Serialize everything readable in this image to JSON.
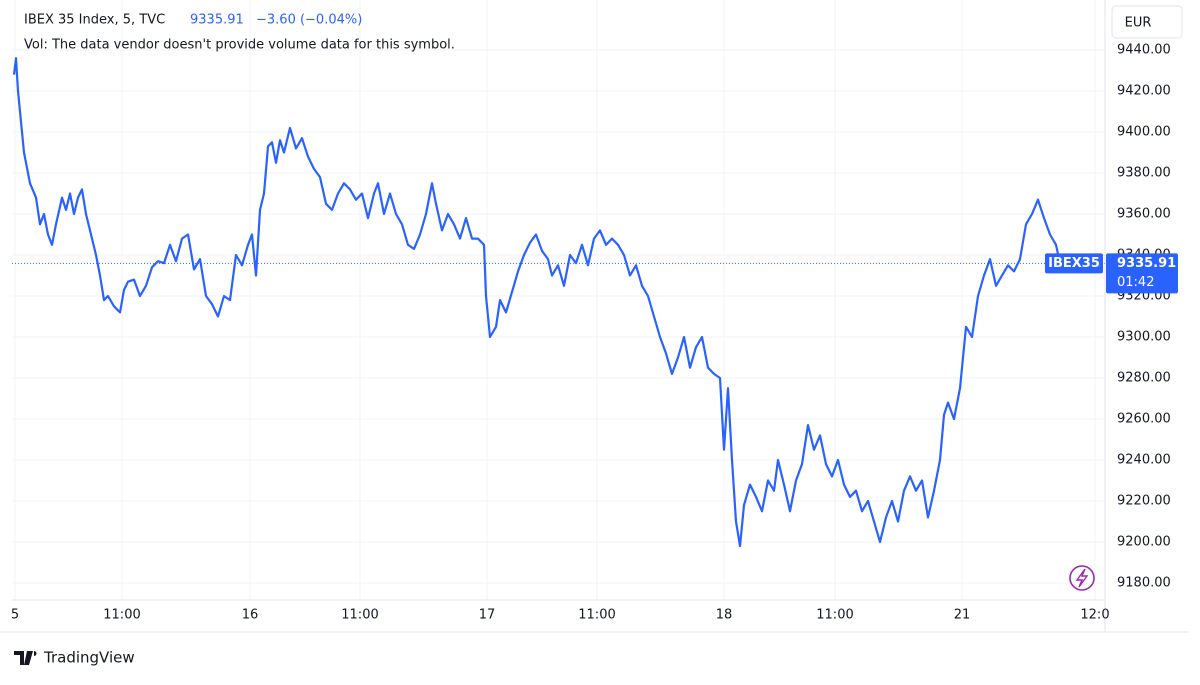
{
  "header": {
    "symbol": "IBEX 35 Index, 5, TVC",
    "change": "−3.60 (−0.04%)",
    "volume_note": "Vol: The data vendor doesn't provide volume data for this symbol."
  },
  "currency": "EUR",
  "brand": "TradingView",
  "chart_data": {
    "type": "line",
    "series": [
      {
        "name": "IBEX35",
        "color": "#2962ff",
        "x": [
          1,
          2,
          3,
          6,
          9,
          12,
          14,
          16,
          18,
          20,
          22,
          25,
          27,
          29,
          31,
          33,
          35,
          37,
          39,
          42,
          44,
          46,
          48,
          51,
          54,
          56,
          58,
          61,
          64,
          67,
          70,
          73,
          76,
          79,
          82,
          85,
          88,
          91,
          94,
          97,
          100,
          103,
          106,
          109,
          112,
          115,
          118,
          120,
          122,
          124,
          126,
          128,
          130,
          132,
          134,
          136,
          139,
          142,
          145,
          148,
          151,
          154,
          157,
          160,
          163,
          166,
          169,
          172,
          175,
          178,
          181,
          183,
          186,
          189,
          192,
          195,
          198,
          201,
          204,
          207,
          210,
          212,
          215,
          218,
          221,
          224,
          227,
          230,
          233,
          236,
          237,
          239,
          242,
          244,
          247,
          250,
          253,
          256,
          259,
          262,
          265,
          268,
          270,
          273,
          276,
          279,
          282,
          285,
          288,
          291,
          294,
          297,
          300,
          303,
          306,
          309,
          312,
          315,
          318,
          321,
          324,
          327,
          330,
          333,
          336,
          339,
          342,
          345,
          348,
          351,
          354,
          356,
          358,
          360,
          362,
          364,
          366,
          369,
          372,
          375,
          378,
          381,
          383,
          386,
          389,
          392,
          395,
          398,
          401,
          404,
          407,
          410,
          413,
          416,
          419,
          422,
          425,
          428,
          431,
          434,
          437,
          440,
          443,
          446,
          449,
          452,
          455,
          458,
          461,
          464,
          466,
          468,
          471,
          474,
          477,
          480,
          483,
          486,
          489,
          492,
          495,
          498,
          501,
          504,
          507,
          510,
          513,
          516,
          519,
          522,
          524
        ],
        "values": [
          9428,
          9436,
          9420,
          9390,
          9375,
          9368,
          9355,
          9360,
          9350,
          9345,
          9355,
          9368,
          9362,
          9370,
          9360,
          9368,
          9372,
          9360,
          9352,
          9340,
          9330,
          9318,
          9320,
          9315,
          9312,
          9323,
          9327,
          9328,
          9320,
          9325,
          9334,
          9337,
          9336,
          9345,
          9337,
          9348,
          9350,
          9333,
          9338,
          9320,
          9316,
          9310,
          9320,
          9318,
          9340,
          9335,
          9345,
          9350,
          9330,
          9362,
          9370,
          9393,
          9395,
          9385,
          9396,
          9390,
          9402,
          9392,
          9397,
          9388,
          9382,
          9378,
          9365,
          9362,
          9370,
          9375,
          9372,
          9367,
          9370,
          9358,
          9370,
          9375,
          9360,
          9370,
          9360,
          9355,
          9345,
          9343,
          9350,
          9360,
          9375,
          9365,
          9352,
          9360,
          9355,
          9348,
          9358,
          9348,
          9348,
          9345,
          9320,
          9300,
          9305,
          9318,
          9312,
          9322,
          9332,
          9340,
          9346,
          9350,
          9342,
          9338,
          9330,
          9335,
          9325,
          9340,
          9336,
          9345,
          9335,
          9348,
          9352,
          9345,
          9348,
          9345,
          9340,
          9330,
          9335,
          9325,
          9320,
          9310,
          9300,
          9292,
          9282,
          9290,
          9300,
          9285,
          9295,
          9300,
          9285,
          9282,
          9280,
          9245,
          9275,
          9240,
          9210,
          9198,
          9218,
          9228,
          9222,
          9215,
          9230,
          9225,
          9240,
          9228,
          9215,
          9230,
          9238,
          9257,
          9245,
          9252,
          9238,
          9232,
          9240,
          9228,
          9222,
          9225,
          9215,
          9220,
          9210,
          9200,
          9212,
          9220,
          9210,
          9225,
          9232,
          9225,
          9230,
          9212,
          9225,
          9240,
          9262,
          9268,
          9260,
          9275,
          9305,
          9300,
          9320,
          9330,
          9338,
          9325,
          9330,
          9335,
          9332,
          9338,
          9355,
          9360,
          9367,
          9358,
          9350,
          9345,
          9335.91
        ]
      }
    ],
    "last_price": 9335.91,
    "countdown": "01:42",
    "xlim": [
      0,
      546.5
    ],
    "xticks": [
      {
        "value": 1.5,
        "label": "5"
      },
      {
        "value": 55,
        "label": "11:00"
      },
      {
        "value": 119,
        "label": "16"
      },
      {
        "value": 174,
        "label": "11:00"
      },
      {
        "value": 237.5,
        "label": "17"
      },
      {
        "value": 292.5,
        "label": "11:00"
      },
      {
        "value": 356,
        "label": "18"
      },
      {
        "value": 411.5,
        "label": "11:00"
      },
      {
        "value": 475,
        "label": "21"
      },
      {
        "value": 541.5,
        "label": "12:0"
      }
    ],
    "ylim": [
      9171.7,
      9464.4
    ],
    "yticks": [
      {
        "value": 9180,
        "label": "9180.00"
      },
      {
        "value": 9200,
        "label": "9200.00"
      },
      {
        "value": 9220,
        "label": "9220.00"
      },
      {
        "value": 9240,
        "label": "9240.00"
      },
      {
        "value": 9260,
        "label": "9260.00"
      },
      {
        "value": 9280,
        "label": "9280.00"
      },
      {
        "value": 9300,
        "label": "9300.00"
      },
      {
        "value": 9320,
        "label": "9320.00"
      },
      {
        "value": 9340,
        "label": "9340.00"
      },
      {
        "value": 9360,
        "label": "9360.00"
      },
      {
        "value": 9380,
        "label": "9380.00"
      },
      {
        "value": 9400,
        "label": "9400.00"
      },
      {
        "value": 9420,
        "label": "9420.00"
      },
      {
        "value": 9440,
        "label": "9440.00"
      }
    ],
    "grid": true
  }
}
